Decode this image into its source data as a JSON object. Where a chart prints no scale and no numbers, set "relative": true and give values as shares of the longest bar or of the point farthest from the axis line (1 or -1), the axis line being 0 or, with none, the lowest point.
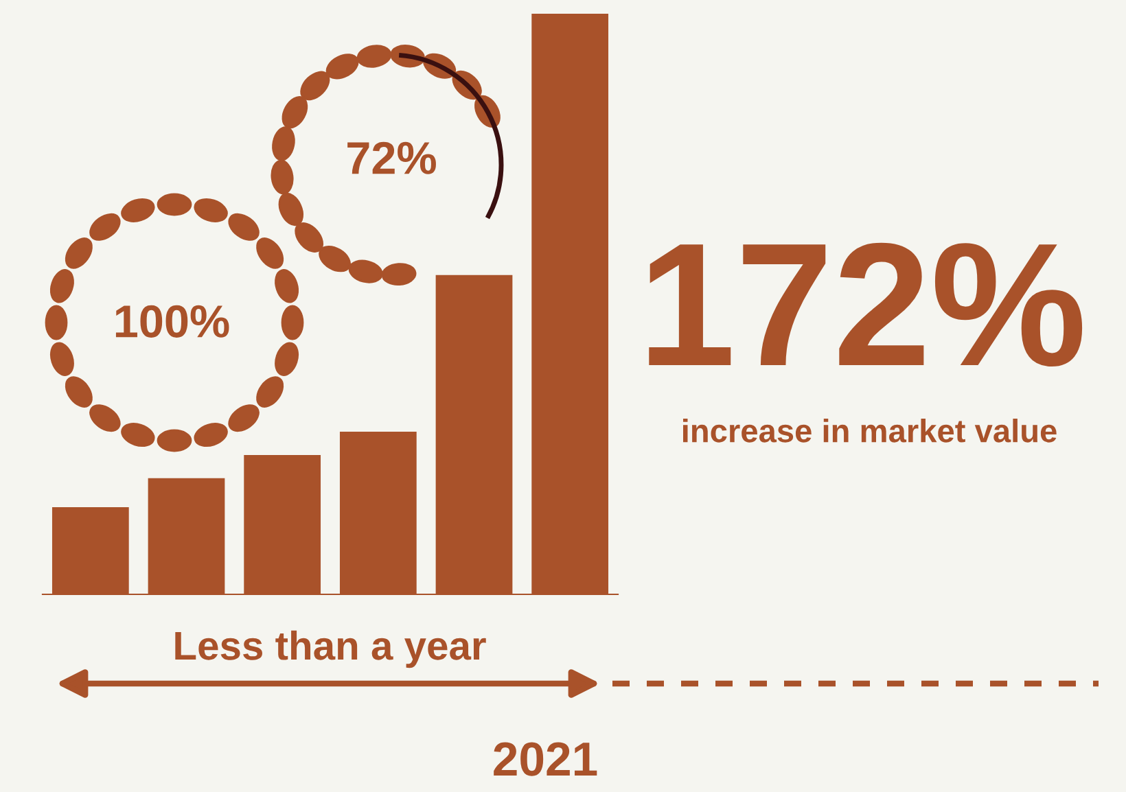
{
  "chart_data": {
    "type": "bar",
    "relative": true,
    "categories": [
      null,
      null,
      null,
      null,
      null,
      null
    ],
    "values": [
      0.15,
      0.2,
      0.24,
      0.28,
      0.55,
      1.0
    ],
    "color": "#a9522a",
    "annotations": [
      "100%",
      "72%",
      "172%",
      "increase in market value",
      "Less than a year",
      "2021"
    ]
  }
}
